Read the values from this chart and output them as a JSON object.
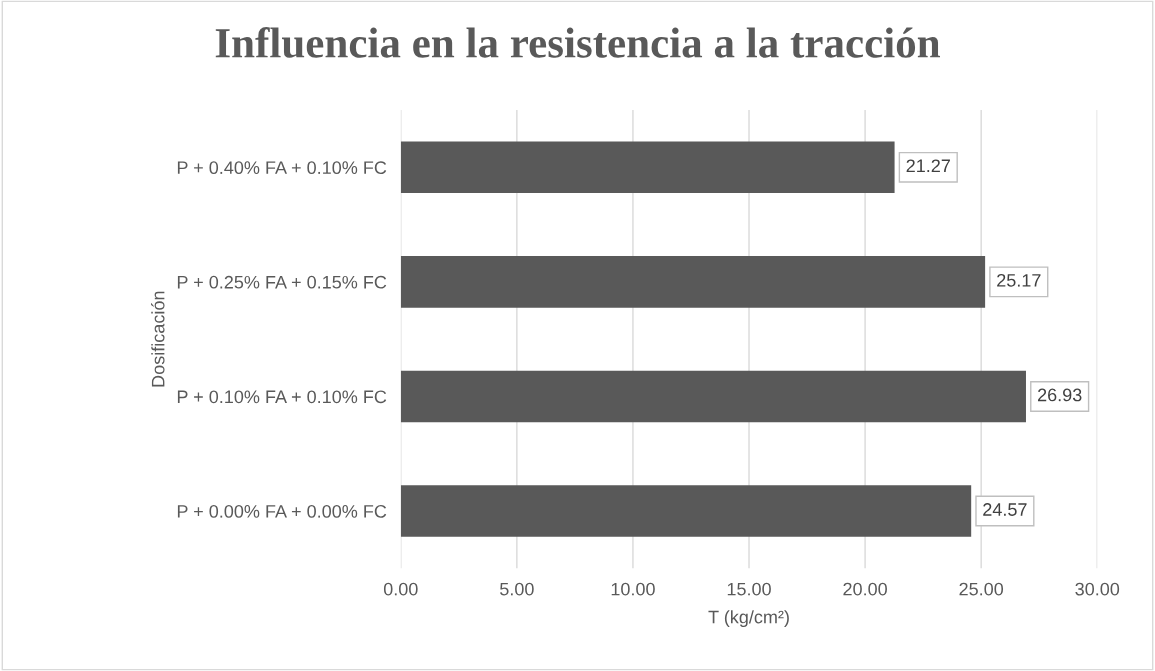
{
  "chart_data": {
    "type": "bar",
    "orientation": "horizontal",
    "title": "Influencia en la resistencia a la tracción",
    "xlabel": "T (kg/cm²)",
    "ylabel": "Dosificación",
    "categories": [
      "P + 0.40% FA + 0.10% FC",
      "P + 0.25% FA + 0.15% FC",
      "P + 0.10% FA + 0.10% FC",
      "P + 0.00% FA + 0.00% FC"
    ],
    "values": [
      21.27,
      25.17,
      26.93,
      24.57
    ],
    "color": "#595959",
    "xlim": [
      0,
      30
    ],
    "xticks": [
      {
        "value": 0,
        "label": "0.00"
      },
      {
        "value": 5,
        "label": "5.00"
      },
      {
        "value": 10,
        "label": "10.00"
      },
      {
        "value": 15,
        "label": "15.00"
      },
      {
        "value": 20,
        "label": "20.00"
      },
      {
        "value": 25,
        "label": "25.00"
      },
      {
        "value": 30,
        "label": "30.00"
      }
    ],
    "grid": "x",
    "data_labels": true,
    "legend": false
  }
}
